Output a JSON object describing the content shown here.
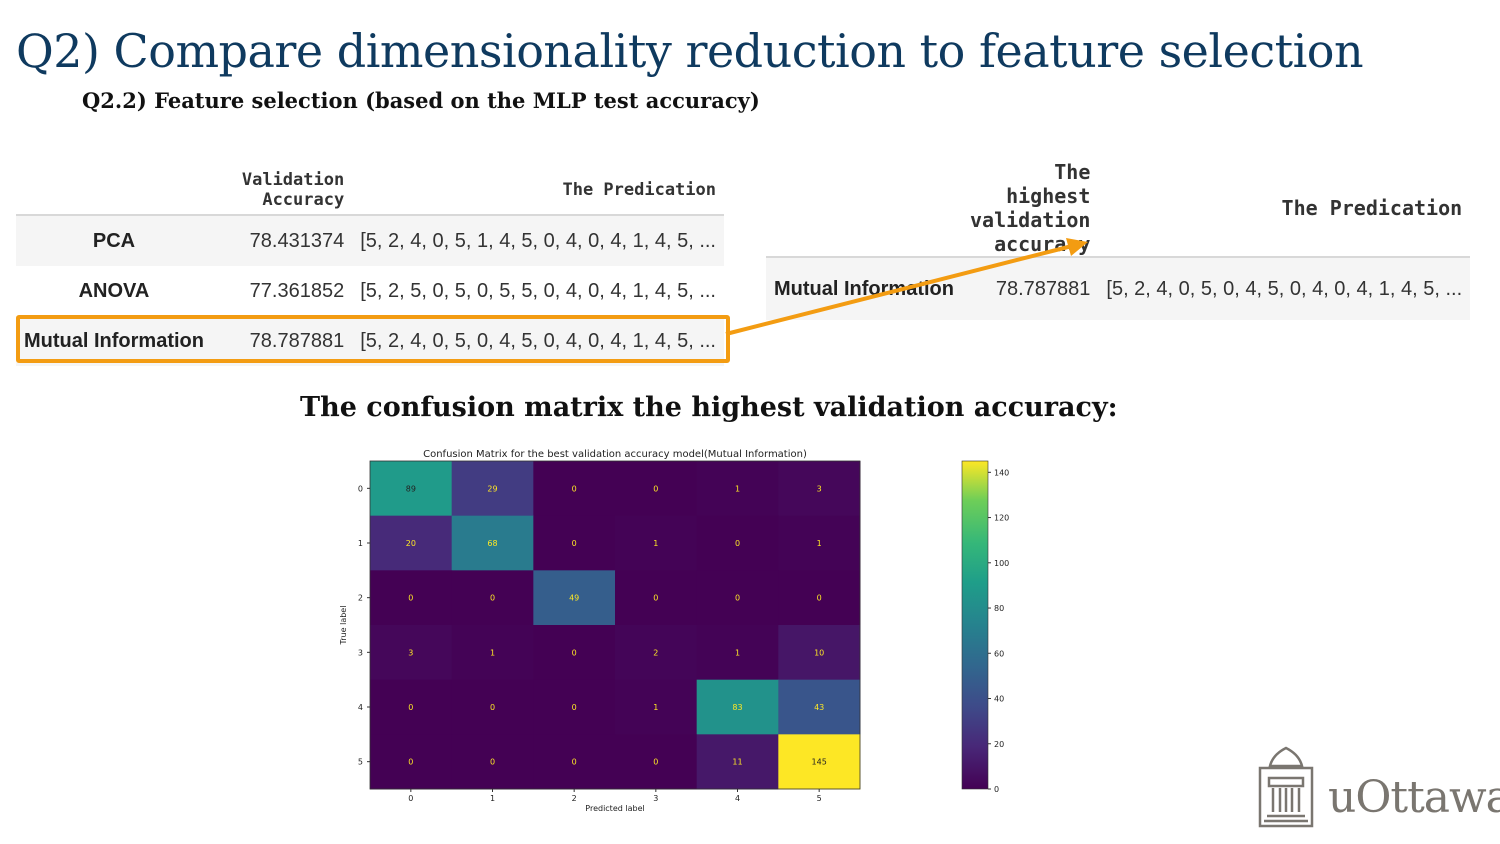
{
  "slide": {
    "title": "Q2) Compare dimensionality reduction to feature selection",
    "subtitle": "Q2.2) Feature selection (based on the MLP test accuracy)",
    "cm_heading": "The confusion matrix the highest validation accuracy:",
    "logo_text": "uOttawa"
  },
  "results_table": {
    "headers": [
      "",
      "Validation Accuracy",
      "The Predication"
    ],
    "rows": [
      {
        "name": "PCA",
        "accuracy": "78.431374",
        "prediction": "[5, 2, 4, 0, 5, 1, 4, 5, 0, 4, 0, 4, 1, 4, 5, ..."
      },
      {
        "name": "ANOVA",
        "accuracy": "77.361852",
        "prediction": "[5, 2, 5, 0, 5, 0, 5, 5, 0, 4, 0, 4, 1, 4, 5, ..."
      },
      {
        "name": "Mutual Information",
        "accuracy": "78.787881",
        "prediction": "[5, 2, 4, 0, 5, 0, 4, 5, 0, 4, 0, 4, 1, 4, 5, ..."
      }
    ],
    "highlighted_row": "Mutual Information"
  },
  "best_table": {
    "headers": [
      "",
      "The highest validation accuracy",
      "The Predication"
    ],
    "row": {
      "name": "Mutual Information",
      "accuracy": "78.787881",
      "prediction": "[5, 2, 4, 0, 5, 0, 4, 5, 0, 4, 0, 4, 1, 4, 5, ..."
    }
  },
  "colors": {
    "title": "#0f3a5f",
    "highlight": "#f39c12"
  },
  "chart_data": {
    "type": "heatmap",
    "title": "Confusion Matrix for the best validation accuracy model(Mutual Information)",
    "xlabel": "Predicted label",
    "ylabel": "True label",
    "x_categories": [
      "0",
      "1",
      "2",
      "3",
      "4",
      "5"
    ],
    "y_categories": [
      "0",
      "1",
      "2",
      "3",
      "4",
      "5"
    ],
    "matrix": [
      [
        89,
        29,
        0,
        0,
        1,
        3
      ],
      [
        20,
        68,
        0,
        1,
        0,
        1
      ],
      [
        0,
        0,
        49,
        0,
        0,
        0
      ],
      [
        3,
        1,
        0,
        2,
        1,
        10
      ],
      [
        0,
        0,
        0,
        1,
        83,
        43
      ],
      [
        0,
        0,
        0,
        0,
        11,
        145
      ]
    ],
    "colormap": "viridis",
    "colorbar_range": [
      0,
      145
    ],
    "colorbar_ticks": [
      0,
      20,
      40,
      60,
      80,
      100,
      120,
      140
    ]
  }
}
